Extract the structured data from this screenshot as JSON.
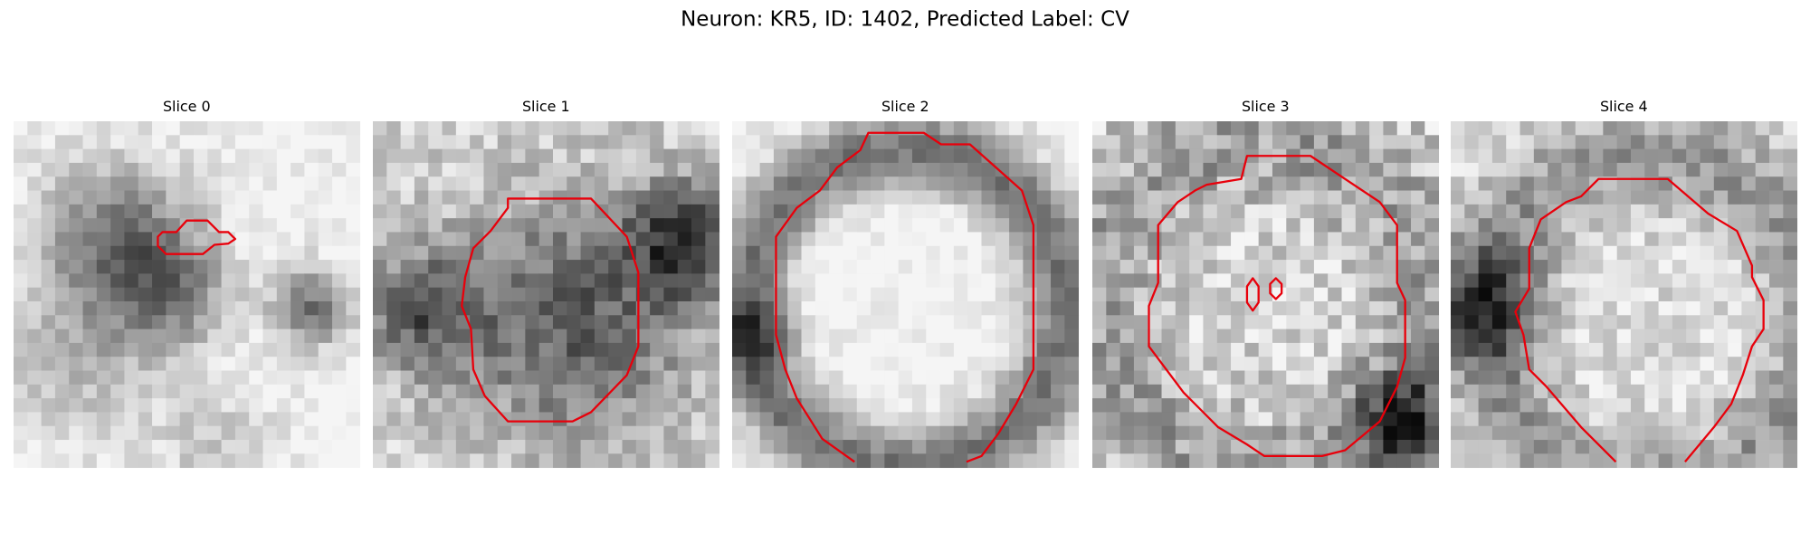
{
  "title": "Neuron: KR5, ID: 1402, Predicted Label: CV",
  "panels": [
    {
      "title": "Slice 0"
    },
    {
      "title": "Slice 1"
    },
    {
      "title": "Slice 2"
    },
    {
      "title": "Slice 3"
    },
    {
      "title": "Slice 4"
    }
  ]
}
